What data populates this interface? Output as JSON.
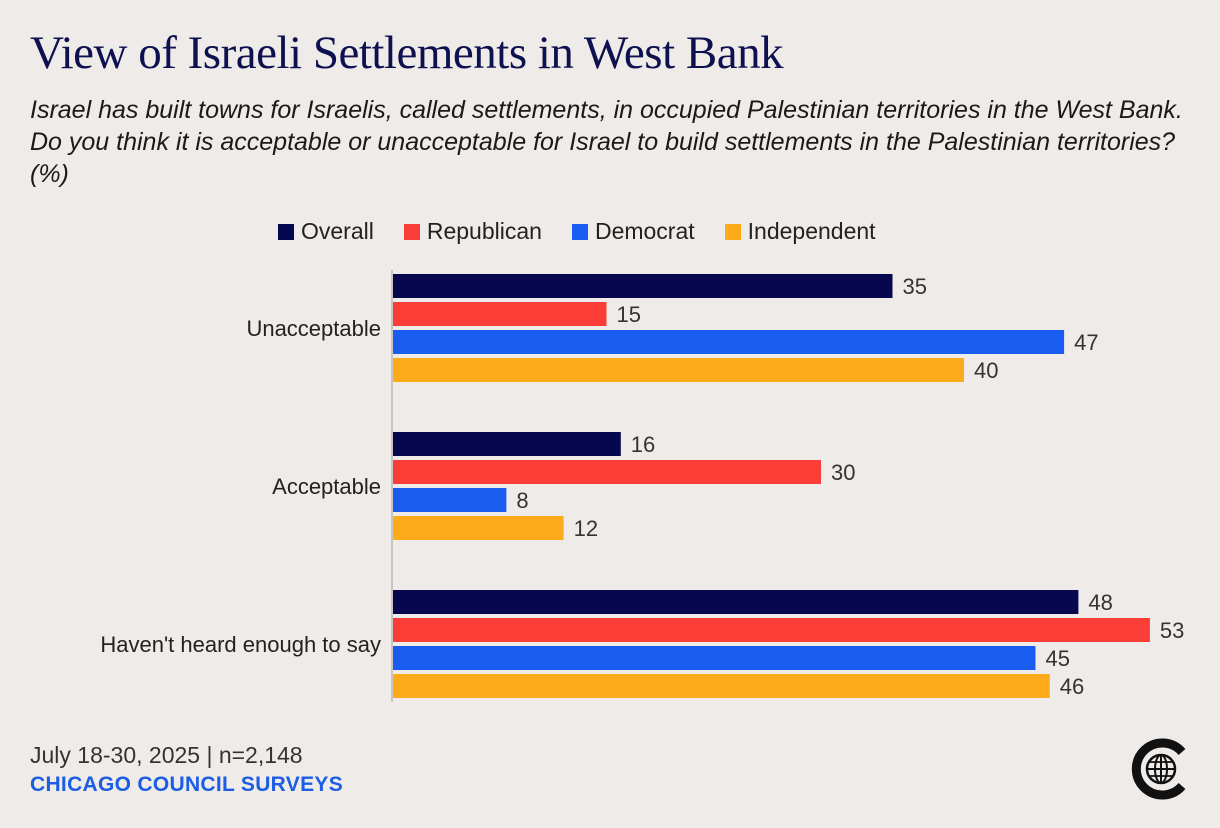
{
  "title": "View of Israeli Settlements in West Bank",
  "subtitle": "Israel has built towns for Israelis, called settlements, in occupied Palestinian territories in the West Bank. Do you think it is acceptable or unacceptable for Israel to build settlements in the Palestinian territories? (%)",
  "footer": {
    "date": "July 18-30, 2025 | n=2,148",
    "source": "CHICAGO COUNCIL SURVEYS"
  },
  "logo": {
    "icon": "chicago-council-globe-logo"
  },
  "chart_data": {
    "type": "bar",
    "orientation": "horizontal",
    "categories": [
      "Unacceptable",
      "Acceptable",
      "Haven't heard enough to say"
    ],
    "series": [
      {
        "name": "Overall",
        "color": "#07074f",
        "values": [
          35,
          16,
          48
        ]
      },
      {
        "name": "Republican",
        "color": "#fb3d38",
        "values": [
          15,
          30,
          53
        ]
      },
      {
        "name": "Democrat",
        "color": "#1a5cf0",
        "values": [
          47,
          8,
          45
        ]
      },
      {
        "name": "Independent",
        "color": "#fdab1b",
        "values": [
          40,
          12,
          46
        ]
      }
    ],
    "xlim": [
      0,
      53
    ],
    "data_labels": true,
    "grid": false,
    "legend_position": "top"
  }
}
